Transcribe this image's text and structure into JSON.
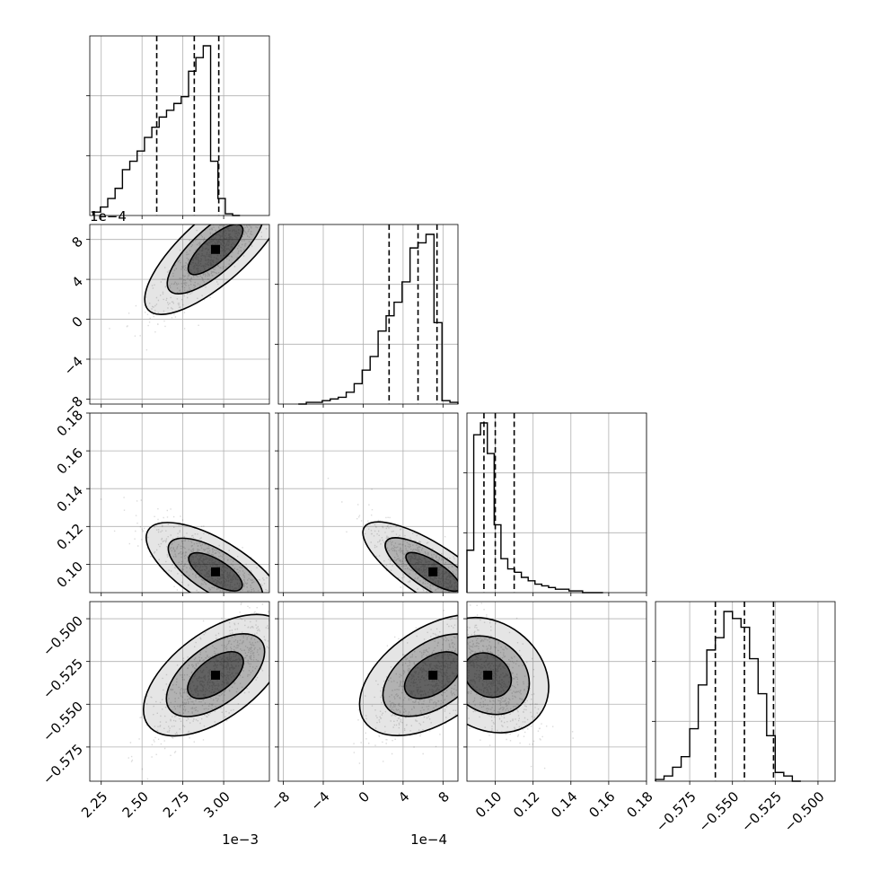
{
  "chart_data": {
    "type": "corner",
    "params": [
      {
        "range": [
          2.18,
          3.28
        ],
        "ticks": [
          {
            "v": 2.25,
            "label": "2.25"
          },
          {
            "v": 2.5,
            "label": "2.50"
          },
          {
            "v": 2.75,
            "label": "2.75"
          },
          {
            "v": 3.0,
            "label": "3.00"
          }
        ],
        "offset": "1e−3",
        "quantiles": [
          2.59,
          2.82,
          2.97
        ],
        "peak": 2.95,
        "sd": 0.15,
        "hist_start": 2.2,
        "hist_step": 0.045,
        "hist": [
          0.02,
          0.05,
          0.1,
          0.16,
          0.27,
          0.32,
          0.38,
          0.46,
          0.52,
          0.58,
          0.62,
          0.66,
          0.7,
          0.85,
          0.93,
          1.0,
          0.32,
          0.1,
          0.01,
          0.0
        ]
      },
      {
        "range": [
          -8.5,
          9.5
        ],
        "ticks": [
          {
            "v": -8,
            "label": "−8"
          },
          {
            "v": -4,
            "label": "−4"
          },
          {
            "v": 0,
            "label": "0"
          },
          {
            "v": 4,
            "label": "4"
          },
          {
            "v": 8,
            "label": "8"
          }
        ],
        "offset": "1e−4",
        "quantiles": [
          2.6,
          5.5,
          7.4
        ],
        "peak": 7.0,
        "sd": 2.5,
        "hist_start": -6.5,
        "hist_step": 0.8,
        "hist": [
          0.0,
          0.01,
          0.01,
          0.02,
          0.03,
          0.04,
          0.07,
          0.12,
          0.2,
          0.28,
          0.43,
          0.52,
          0.6,
          0.72,
          0.92,
          0.95,
          1.0,
          0.48,
          0.02,
          0.01
        ]
      },
      {
        "range": [
          0.085,
          0.18
        ],
        "ticks": [
          {
            "v": 0.1,
            "label": "0.10"
          },
          {
            "v": 0.12,
            "label": "0.12"
          },
          {
            "v": 0.14,
            "label": "0.14"
          },
          {
            "v": 0.16,
            "label": "0.16"
          },
          {
            "v": 0.18,
            "label": "0.18"
          }
        ],
        "offset": "",
        "quantiles": [
          0.094,
          0.1,
          0.11
        ],
        "peak": 0.096,
        "sd": 0.01,
        "hist_start": 0.085,
        "hist_step": 0.0036,
        "hist": [
          0.25,
          0.93,
          1.0,
          0.82,
          0.4,
          0.2,
          0.14,
          0.12,
          0.09,
          0.07,
          0.05,
          0.04,
          0.03,
          0.02,
          0.02,
          0.01,
          0.01,
          0.0,
          0.0,
          0.0
        ]
      },
      {
        "range": [
          -0.595,
          -0.49
        ],
        "ticks": [
          {
            "v": -0.575,
            "label": "−0.575"
          },
          {
            "v": -0.55,
            "label": "−0.550"
          },
          {
            "v": -0.525,
            "label": "−0.525"
          },
          {
            "v": -0.5,
            "label": "−0.500"
          }
        ],
        "offset": "",
        "quantiles": [
          -0.56,
          -0.543,
          -0.526
        ],
        "peak": -0.533,
        "sd": 0.014,
        "hist_start": -0.595,
        "hist_step": 0.005,
        "hist": [
          0.01,
          0.03,
          0.08,
          0.14,
          0.3,
          0.55,
          0.75,
          0.82,
          0.97,
          0.93,
          0.88,
          0.7,
          0.5,
          0.26,
          0.05,
          0.03,
          0.0
        ]
      }
    ],
    "pairs": [
      {
        "row": 1,
        "col": 0,
        "corr": 0.88
      },
      {
        "row": 2,
        "col": 0,
        "corr": -0.8
      },
      {
        "row": 2,
        "col": 1,
        "corr": -0.86
      },
      {
        "row": 3,
        "col": 0,
        "corr": 0.76
      },
      {
        "row": 3,
        "col": 1,
        "corr": 0.7
      },
      {
        "row": 3,
        "col": 2,
        "corr": -0.6
      }
    ],
    "grid": true,
    "colors": {
      "hist": "#000000",
      "contour": "#000000",
      "density": "#000000",
      "grid": "#b0b0b0"
    }
  }
}
